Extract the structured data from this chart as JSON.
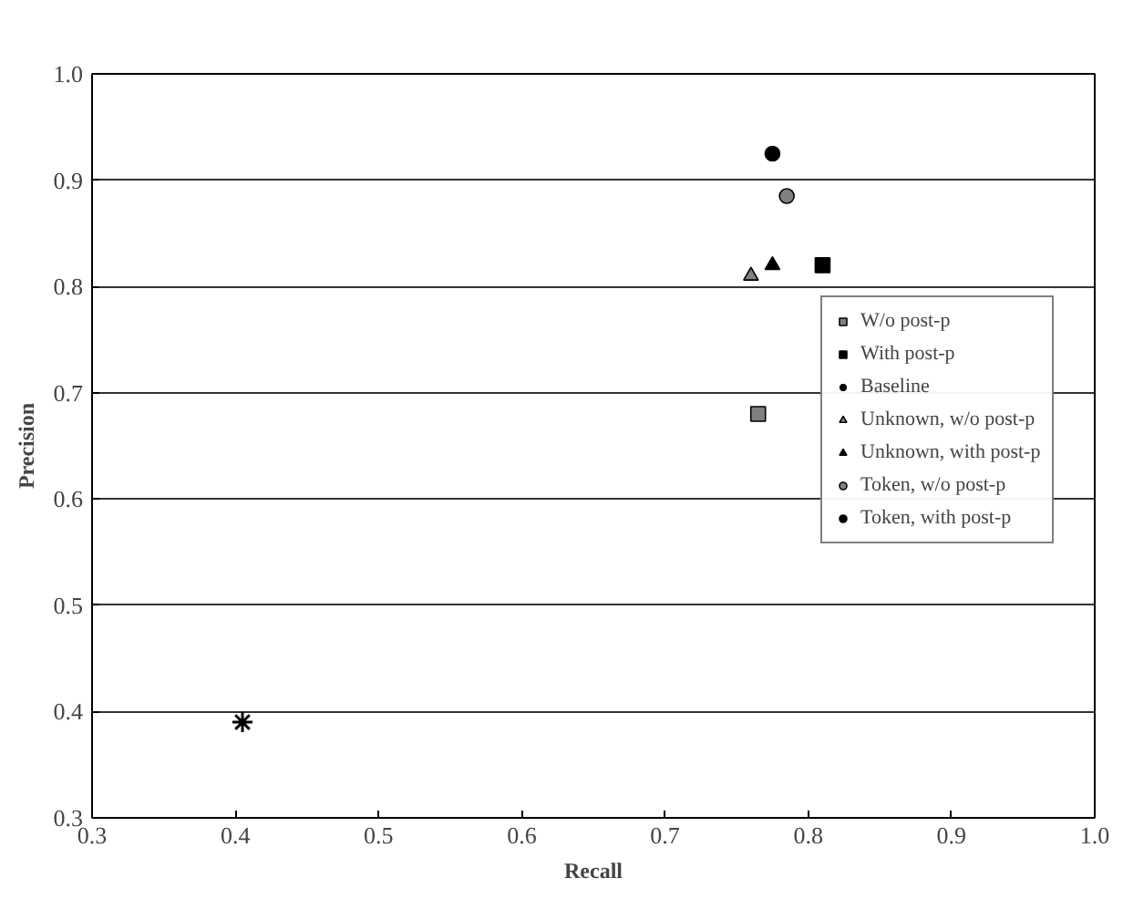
{
  "chart_data": {
    "type": "scatter",
    "xlabel": "Recall",
    "ylabel": "Precision",
    "xlim": [
      0.3,
      1.0
    ],
    "ylim": [
      0.3,
      1.0
    ],
    "xticks": [
      {
        "value": 0.3,
        "label": "0.3"
      },
      {
        "value": 0.4,
        "label": "0.4"
      },
      {
        "value": 0.5,
        "label": "0.5"
      },
      {
        "value": 0.6,
        "label": "0.6"
      },
      {
        "value": 0.7,
        "label": "0.7"
      },
      {
        "value": 0.8,
        "label": "0.8"
      },
      {
        "value": 0.9,
        "label": "0.9"
      },
      {
        "value": 1.0,
        "label": "1.0"
      }
    ],
    "yticks": [
      {
        "value": 0.3,
        "label": "0.3"
      },
      {
        "value": 0.4,
        "label": "0.4"
      },
      {
        "value": 0.5,
        "label": "0.5"
      },
      {
        "value": 0.6,
        "label": "0.6"
      },
      {
        "value": 0.7,
        "label": "0.7"
      },
      {
        "value": 0.8,
        "label": "0.8"
      },
      {
        "value": 0.9,
        "label": "0.9"
      },
      {
        "value": 1.0,
        "label": "1.0"
      }
    ],
    "grid": "y",
    "legend": "right",
    "series": [
      {
        "name": "W/o post-p",
        "color": "#808080",
        "marker": "square",
        "x": [
          0.765
        ],
        "values": [
          0.68
        ]
      },
      {
        "name": "With post-p",
        "color": "#000000",
        "marker": "square",
        "x": [
          0.81
        ],
        "values": [
          0.82
        ]
      },
      {
        "name": "Baseline",
        "color": "#000000",
        "marker": "cross",
        "x": [
          0.405
        ],
        "values": [
          0.39
        ]
      },
      {
        "name": "Unknown, w/o post-p",
        "color": "#808080",
        "marker": "triangle",
        "x": [
          0.76
        ],
        "values": [
          0.81
        ]
      },
      {
        "name": "Unknown, with post-p",
        "color": "#000000",
        "marker": "triangle",
        "x": [
          0.775
        ],
        "values": [
          0.82
        ]
      },
      {
        "name": "Token, w/o post-p",
        "color": "#808080",
        "marker": "circle",
        "x": [
          0.785
        ],
        "values": [
          0.885
        ]
      },
      {
        "name": "Token, with post-p",
        "color": "#000000",
        "marker": "circle",
        "x": [
          0.775
        ],
        "values": [
          0.925
        ]
      }
    ]
  }
}
